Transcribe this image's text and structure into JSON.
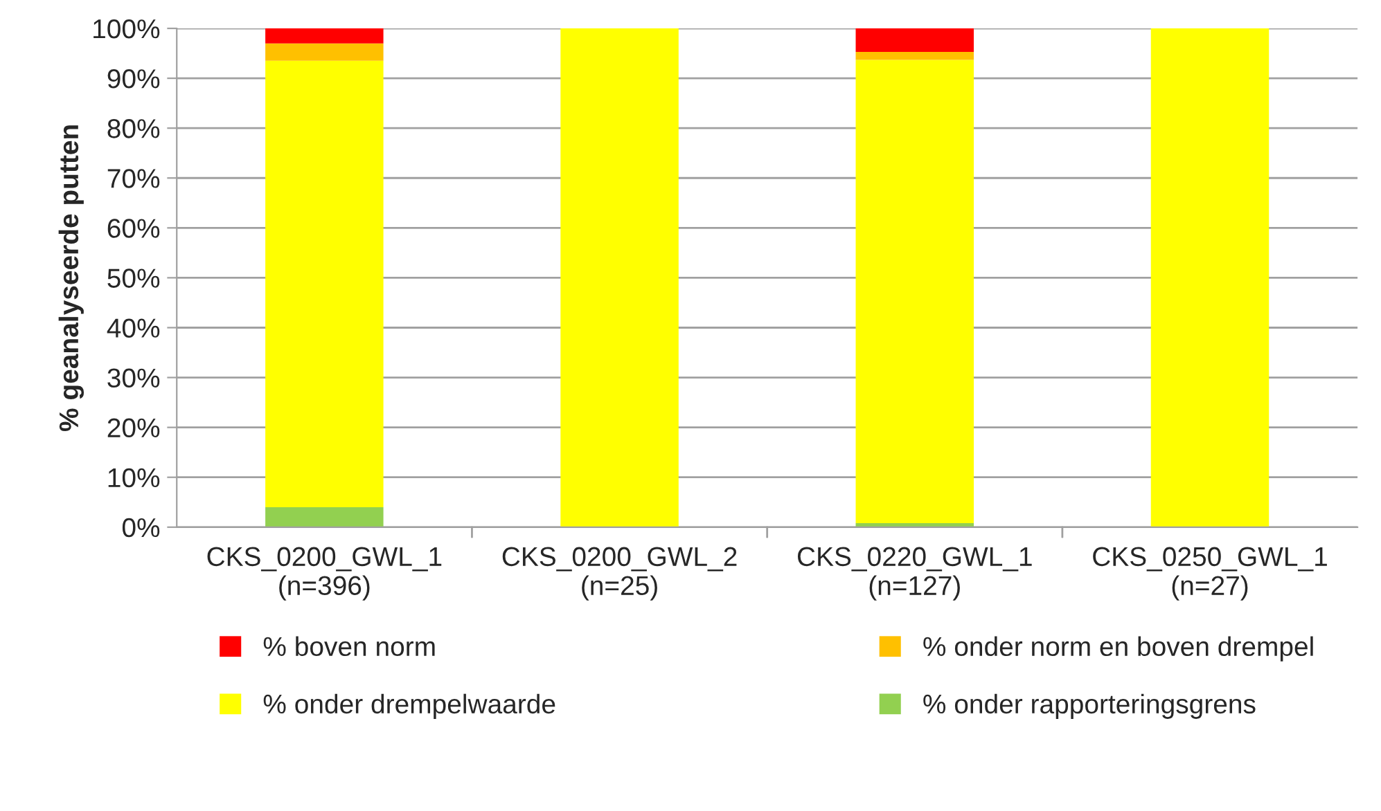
{
  "chart_data": {
    "type": "bar",
    "stacked": true,
    "ylabel": "% geanalyseerde putten",
    "categories": [
      "CKS_0200_GWL_1\n(n=396)",
      "CKS_0200_GWL_2\n(n=25)",
      "CKS_0220_GWL_1\n(n=127)",
      "CKS_0250_GWL_1\n(n=27)"
    ],
    "series": [
      {
        "name": "% onder rapporteringsgrens",
        "color": "#92d050",
        "values": [
          4.0,
          null,
          0.8,
          null
        ]
      },
      {
        "name": "% onder drempelwaarde",
        "color": "#ffff00",
        "values": [
          89.5,
          100,
          92.9,
          100
        ]
      },
      {
        "name": "% onder norm en boven drempel",
        "color": "#ffc000",
        "values": [
          3.5,
          null,
          1.6,
          null
        ]
      },
      {
        "name": "% boven norm",
        "color": "#ff0000",
        "values": [
          3.0,
          null,
          4.7,
          null
        ]
      }
    ],
    "ylim": [
      0,
      100
    ],
    "yticks": [
      {
        "value": 0,
        "label": "0%"
      },
      {
        "value": 10,
        "label": "10%"
      },
      {
        "value": 20,
        "label": "20%"
      },
      {
        "value": 30,
        "label": "30%"
      },
      {
        "value": 40,
        "label": "40%"
      },
      {
        "value": 50,
        "label": "50%"
      },
      {
        "value": 60,
        "label": "60%"
      },
      {
        "value": 70,
        "label": "70%"
      },
      {
        "value": 80,
        "label": "80%"
      },
      {
        "value": 90,
        "label": "90%"
      },
      {
        "value": 100,
        "label": "100%"
      }
    ],
    "grid": "y",
    "legend": "bottom"
  }
}
